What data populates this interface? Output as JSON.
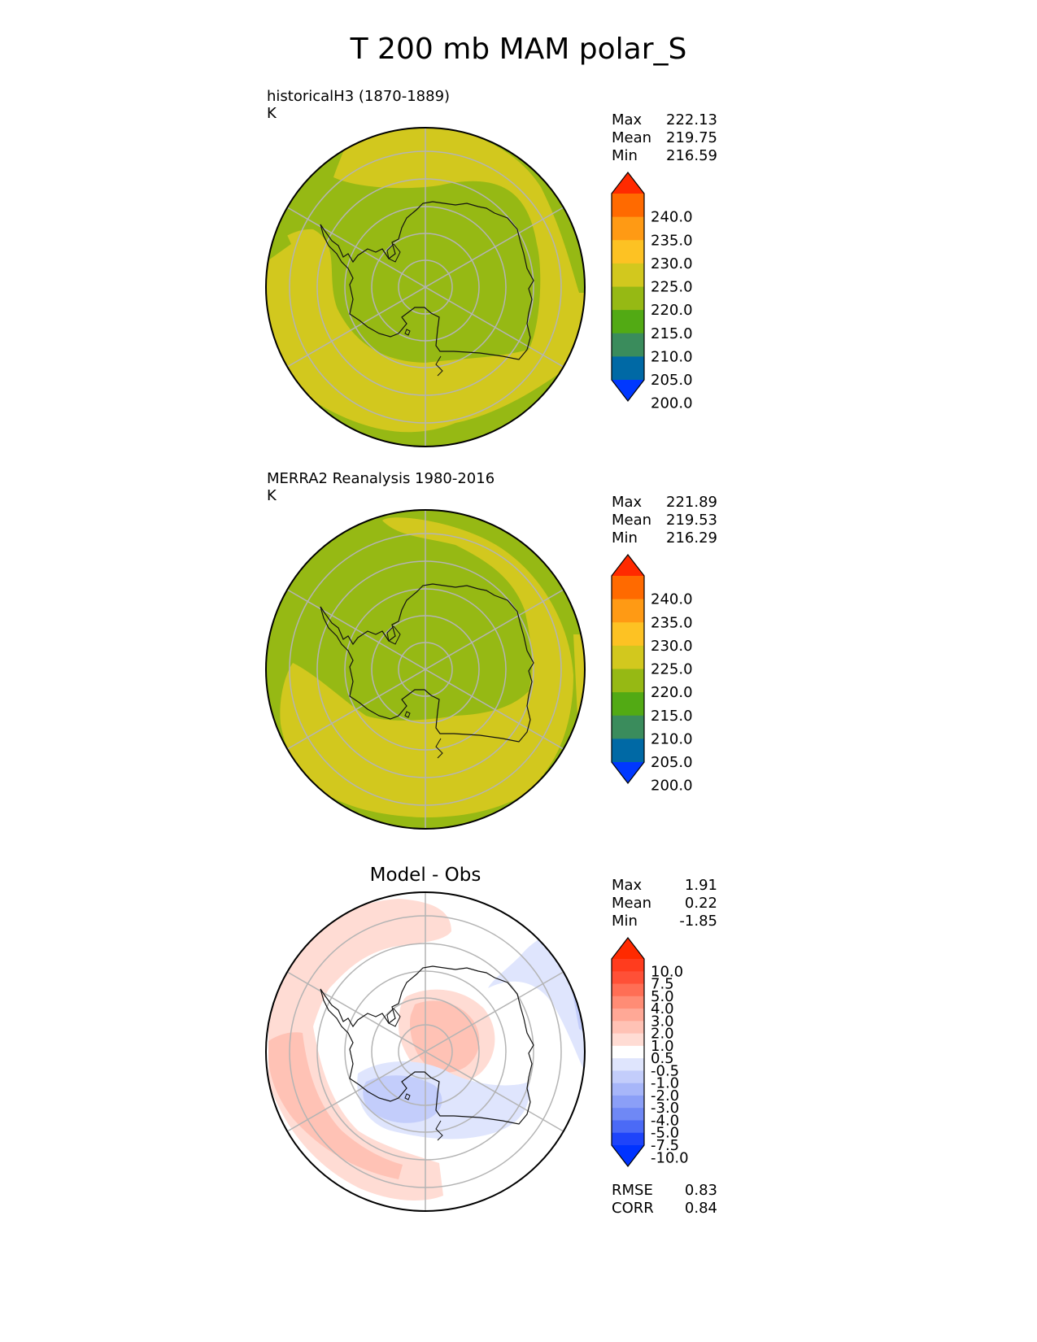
{
  "title": "T 200 mb MAM polar_S",
  "panels": [
    {
      "id": "model",
      "title": "historicalH3 (1870-1889)",
      "units": "K",
      "stats": [
        {
          "label": "Max",
          "value": "222.13"
        },
        {
          "label": "Mean",
          "value": "219.75"
        },
        {
          "label": "Min",
          "value": "216.59"
        }
      ]
    },
    {
      "id": "obs",
      "title": "MERRA2 Reanalysis 1980-2016",
      "units": "K",
      "stats": [
        {
          "label": "Max",
          "value": "221.89"
        },
        {
          "label": "Mean",
          "value": "219.53"
        },
        {
          "label": "Min",
          "value": "216.29"
        }
      ]
    },
    {
      "id": "diff",
      "title": "Model - Obs",
      "stats": [
        {
          "label": "Max",
          "value": "1.91"
        },
        {
          "label": "Mean",
          "value": "0.22"
        },
        {
          "label": "Min",
          "value": "-1.85"
        }
      ],
      "metrics": [
        {
          "label": "RMSE",
          "value": "0.83"
        },
        {
          "label": "CORR",
          "value": "0.84"
        }
      ]
    }
  ],
  "colorbars": {
    "absolute": {
      "ticks": [
        "240.0",
        "235.0",
        "230.0",
        "225.0",
        "220.0",
        "215.0",
        "210.0",
        "205.0",
        "200.0"
      ],
      "colors": [
        "#ff2a00",
        "#ff6a00",
        "#ff9a14",
        "#fdc223",
        "#d2c81e",
        "#96b914",
        "#52aa14",
        "#3a8c5c",
        "#0069a5",
        "#0038ff"
      ]
    },
    "difference": {
      "ticks": [
        "10.0",
        "7.5",
        "5.0",
        "4.0",
        "3.0",
        "2.0",
        "1.0",
        "0.5",
        "-0.5",
        "-1.0",
        "-2.0",
        "-3.0",
        "-4.0",
        "-5.0",
        "-7.5",
        "-10.0"
      ],
      "colors": [
        "#ff2a00",
        "#ff3c1e",
        "#ff5037",
        "#ff6e55",
        "#ff8c75",
        "#ffa896",
        "#ffc2b5",
        "#ffdcd4",
        "#ffffff",
        "#dfe5fd",
        "#c3cdfb",
        "#a7b6f9",
        "#8b9ff7",
        "#6f88f5",
        "#4b6af6",
        "#1e44fa",
        "#0033ff"
      ]
    }
  },
  "chart_data": [
    {
      "type": "heatmap",
      "title": "historicalH3 (1870-1889)",
      "units": "K",
      "projection": "south polar stereographic",
      "levels": [
        200,
        205,
        210,
        215,
        220,
        225,
        230,
        235,
        240
      ],
      "stats": {
        "max": 222.13,
        "mean": 219.75,
        "min": 216.59
      },
      "regions": [
        {
          "range": "215-220",
          "where": "over Antarctica and poleward of ~65S, plus outer ring at the edges"
        },
        {
          "range": "220-225",
          "where": "mid-latitude band wrapping around the continent"
        }
      ]
    },
    {
      "type": "heatmap",
      "title": "MERRA2 Reanalysis 1980-2016",
      "units": "K",
      "projection": "south polar stereographic",
      "levels": [
        200,
        205,
        210,
        215,
        220,
        225,
        230,
        235,
        240
      ],
      "stats": {
        "max": 221.89,
        "mean": 219.53,
        "min": 216.29
      },
      "regions": [
        {
          "range": "215-220",
          "where": "over Antarctica and most of the outer edge"
        },
        {
          "range": "220-225",
          "where": "spiral band from top-right around bottom to left"
        }
      ]
    },
    {
      "type": "heatmap",
      "title": "Model - Obs",
      "projection": "south polar stereographic",
      "levels": [
        -10,
        -7.5,
        -5,
        -4,
        -3,
        -2,
        -1,
        -0.5,
        0.5,
        1,
        2,
        3,
        4,
        5,
        7.5,
        10
      ],
      "stats": {
        "max": 1.91,
        "mean": 0.22,
        "min": -1.85,
        "rmse": 0.83,
        "corr": 0.84
      },
      "regions": [
        {
          "range": "0.5-2",
          "where": "pole / East Antarctica, western edge, top edge"
        },
        {
          "range": "-2 to -0.5",
          "where": "West Antarctica / Ross sector and right-hand edge"
        }
      ]
    }
  ]
}
